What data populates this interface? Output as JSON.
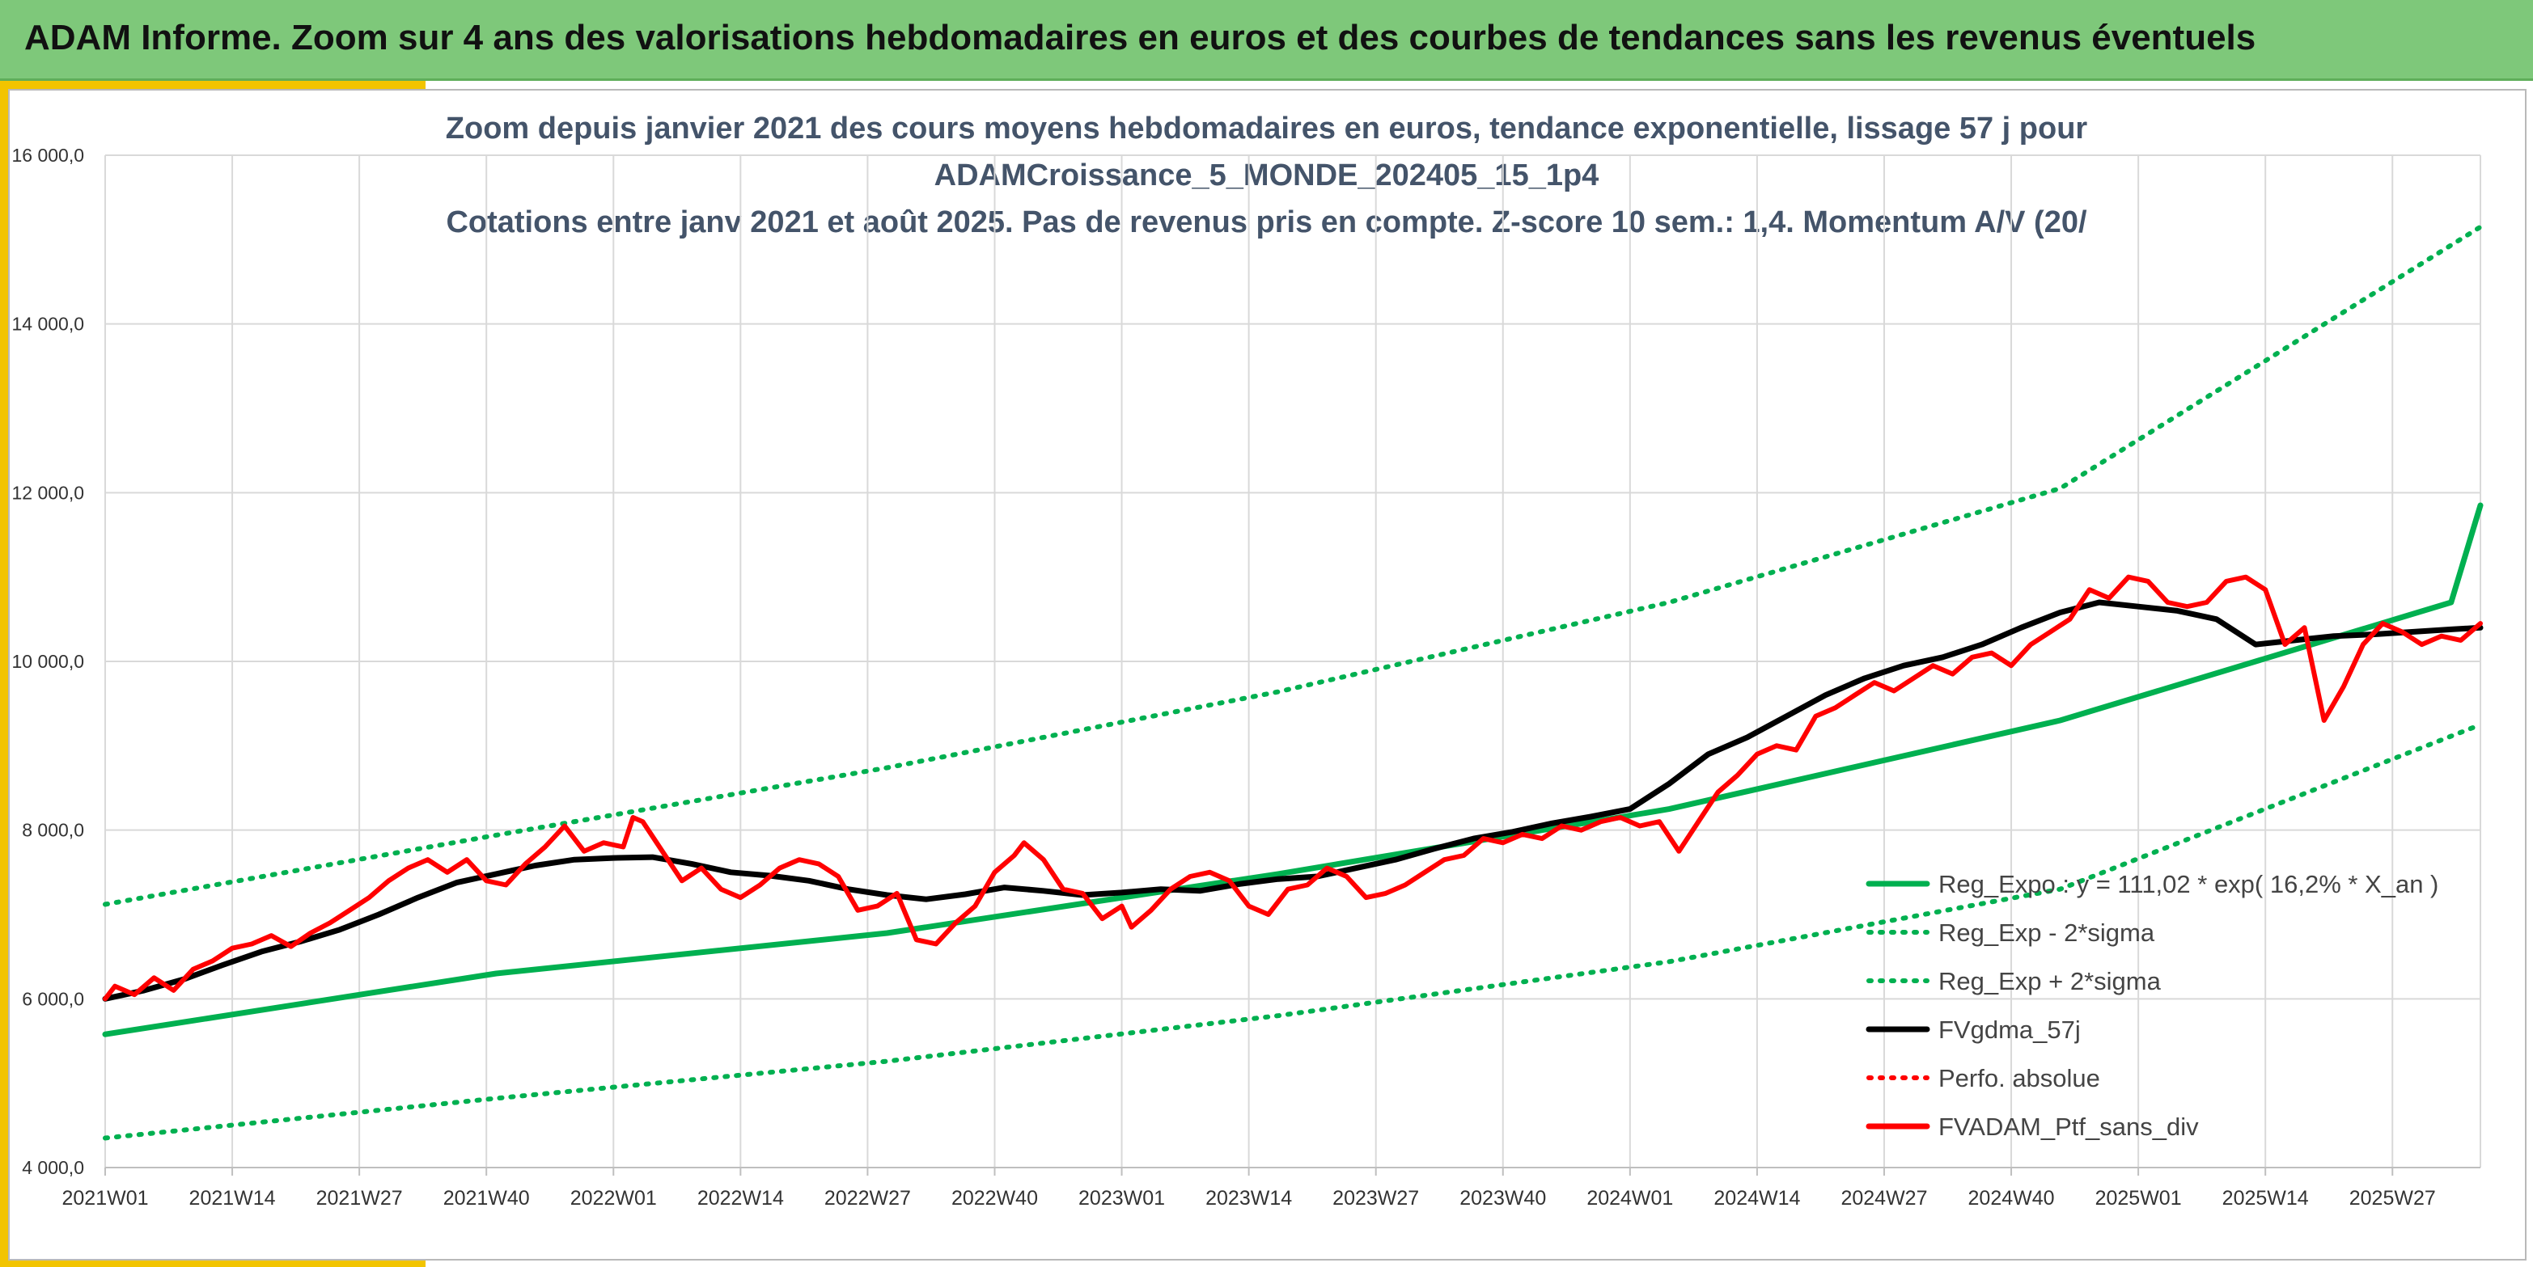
{
  "header": {
    "title": "ADAM Informe. Zoom sur 4 ans des valorisations hebdomadaires en euros et des courbes de tendances sans les revenus éventuels"
  },
  "colors": {
    "header_bg": "#7ec87a",
    "accent_yellow": "#f2c400",
    "green": "#00b050",
    "red": "#ff0000",
    "black": "#000000"
  },
  "chart_data": {
    "type": "line",
    "title": [
      "Zoom depuis janvier 2021 des cours moyens hebdomadaires en euros, tendance exponentielle, lissage 57 j pour",
      "ADAMCroissance_5_MONDE_202405_15_1p4",
      "Cotations entre janv 2021 et août 2025. Pas de revenus pris en compte. Z-score 10 sem.: 1,4. Momentum A/V (20/"
    ],
    "x_tick_labels": [
      "2021W01",
      "2021W14",
      "2021W27",
      "2021W40",
      "2022W01",
      "2022W14",
      "2022W27",
      "2022W40",
      "2023W01",
      "2023W14",
      "2023W27",
      "2023W40",
      "2024W01",
      "2024W14",
      "2024W27",
      "2024W40",
      "2025W01",
      "2025W14",
      "2025W27"
    ],
    "x_range_weeks": [
      0,
      243
    ],
    "y_tick_labels": [
      "4 000,0",
      "6 000,0",
      "8 000,0",
      "10 000,0",
      "12 000,0",
      "14 000,0",
      "16 000,0"
    ],
    "ylim": [
      4000,
      16000
    ],
    "grid": true,
    "legend_position": "bottom-right",
    "series": [
      {
        "name": "Reg_Expo : y = 111,02 * exp( 16,2% *  X_an )",
        "style": "solid",
        "color": "#00b050",
        "points": [
          [
            0,
            5580
          ],
          [
            40,
            6300
          ],
          [
            80,
            6780
          ],
          [
            120,
            7480
          ],
          [
            160,
            8250
          ],
          [
            200,
            9300
          ],
          [
            240,
            10700
          ],
          [
            243,
            11850
          ]
        ]
      },
      {
        "name": "Reg_Exp - 2*sigma",
        "style": "dotted",
        "color": "#00b050",
        "points": [
          [
            0,
            4350
          ],
          [
            40,
            4820
          ],
          [
            80,
            5260
          ],
          [
            120,
            5800
          ],
          [
            160,
            6440
          ],
          [
            200,
            7300
          ],
          [
            243,
            9250
          ]
        ]
      },
      {
        "name": "Reg_Exp + 2*sigma",
        "style": "dotted",
        "color": "#00b050",
        "points": [
          [
            0,
            7120
          ],
          [
            40,
            7940
          ],
          [
            80,
            8740
          ],
          [
            120,
            9640
          ],
          [
            160,
            10700
          ],
          [
            200,
            12050
          ],
          [
            243,
            15150
          ]
        ]
      },
      {
        "name": "FVgdma_57j",
        "style": "solid",
        "color": "#000000",
        "points": [
          [
            0,
            6000
          ],
          [
            4,
            6100
          ],
          [
            8,
            6230
          ],
          [
            12,
            6400
          ],
          [
            16,
            6560
          ],
          [
            20,
            6680
          ],
          [
            24,
            6820
          ],
          [
            28,
            7000
          ],
          [
            32,
            7200
          ],
          [
            36,
            7380
          ],
          [
            40,
            7480
          ],
          [
            44,
            7580
          ],
          [
            48,
            7650
          ],
          [
            52,
            7670
          ],
          [
            56,
            7680
          ],
          [
            60,
            7600
          ],
          [
            64,
            7500
          ],
          [
            68,
            7460
          ],
          [
            72,
            7400
          ],
          [
            76,
            7300
          ],
          [
            80,
            7230
          ],
          [
            84,
            7180
          ],
          [
            88,
            7240
          ],
          [
            92,
            7320
          ],
          [
            96,
            7280
          ],
          [
            100,
            7230
          ],
          [
            104,
            7260
          ],
          [
            108,
            7300
          ],
          [
            112,
            7280
          ],
          [
            116,
            7360
          ],
          [
            120,
            7420
          ],
          [
            124,
            7450
          ],
          [
            128,
            7550
          ],
          [
            132,
            7650
          ],
          [
            136,
            7780
          ],
          [
            140,
            7900
          ],
          [
            144,
            7980
          ],
          [
            148,
            8080
          ],
          [
            152,
            8160
          ],
          [
            156,
            8250
          ],
          [
            160,
            8550
          ],
          [
            164,
            8900
          ],
          [
            168,
            9100
          ],
          [
            172,
            9350
          ],
          [
            176,
            9600
          ],
          [
            180,
            9800
          ],
          [
            184,
            9950
          ],
          [
            188,
            10050
          ],
          [
            192,
            10200
          ],
          [
            196,
            10400
          ],
          [
            200,
            10580
          ],
          [
            204,
            10700
          ],
          [
            208,
            10650
          ],
          [
            212,
            10600
          ],
          [
            216,
            10500
          ],
          [
            220,
            10200
          ],
          [
            224,
            10250
          ],
          [
            228,
            10300
          ],
          [
            232,
            10320
          ],
          [
            236,
            10350
          ],
          [
            240,
            10380
          ],
          [
            243,
            10400
          ]
        ]
      },
      {
        "name": "Perfo. absolue",
        "style": "dotted",
        "color": "#ff0000",
        "points": []
      },
      {
        "name": "FVADAM_Ptf_sans_div",
        "style": "solid",
        "color": "#ff0000",
        "points": [
          [
            0,
            6000
          ],
          [
            1,
            6150
          ],
          [
            3,
            6050
          ],
          [
            5,
            6250
          ],
          [
            7,
            6100
          ],
          [
            9,
            6350
          ],
          [
            11,
            6450
          ],
          [
            13,
            6600
          ],
          [
            15,
            6650
          ],
          [
            17,
            6750
          ],
          [
            19,
            6620
          ],
          [
            21,
            6780
          ],
          [
            23,
            6900
          ],
          [
            25,
            7050
          ],
          [
            27,
            7200
          ],
          [
            29,
            7400
          ],
          [
            31,
            7550
          ],
          [
            33,
            7650
          ],
          [
            35,
            7500
          ],
          [
            37,
            7650
          ],
          [
            39,
            7400
          ],
          [
            41,
            7350
          ],
          [
            43,
            7600
          ],
          [
            45,
            7800
          ],
          [
            47,
            8050
          ],
          [
            49,
            7750
          ],
          [
            51,
            7850
          ],
          [
            53,
            7800
          ],
          [
            54,
            8150
          ],
          [
            55,
            8100
          ],
          [
            57,
            7750
          ],
          [
            59,
            7400
          ],
          [
            61,
            7550
          ],
          [
            63,
            7300
          ],
          [
            65,
            7200
          ],
          [
            67,
            7350
          ],
          [
            69,
            7550
          ],
          [
            71,
            7650
          ],
          [
            73,
            7600
          ],
          [
            75,
            7450
          ],
          [
            77,
            7050
          ],
          [
            79,
            7100
          ],
          [
            81,
            7250
          ],
          [
            83,
            6700
          ],
          [
            85,
            6650
          ],
          [
            87,
            6900
          ],
          [
            89,
            7100
          ],
          [
            91,
            7500
          ],
          [
            93,
            7700
          ],
          [
            94,
            7850
          ],
          [
            96,
            7650
          ],
          [
            98,
            7300
          ],
          [
            100,
            7250
          ],
          [
            102,
            6950
          ],
          [
            104,
            7100
          ],
          [
            105,
            6850
          ],
          [
            107,
            7050
          ],
          [
            109,
            7300
          ],
          [
            111,
            7450
          ],
          [
            113,
            7500
          ],
          [
            115,
            7400
          ],
          [
            117,
            7100
          ],
          [
            119,
            7000
          ],
          [
            121,
            7300
          ],
          [
            123,
            7350
          ],
          [
            125,
            7550
          ],
          [
            127,
            7450
          ],
          [
            129,
            7200
          ],
          [
            131,
            7250
          ],
          [
            133,
            7350
          ],
          [
            135,
            7500
          ],
          [
            137,
            7650
          ],
          [
            139,
            7700
          ],
          [
            141,
            7900
          ],
          [
            143,
            7850
          ],
          [
            145,
            7950
          ],
          [
            147,
            7900
          ],
          [
            149,
            8050
          ],
          [
            151,
            8000
          ],
          [
            153,
            8100
          ],
          [
            155,
            8150
          ],
          [
            157,
            8050
          ],
          [
            159,
            8100
          ],
          [
            161,
            7750
          ],
          [
            163,
            8100
          ],
          [
            165,
            8450
          ],
          [
            167,
            8650
          ],
          [
            169,
            8900
          ],
          [
            171,
            9000
          ],
          [
            173,
            8950
          ],
          [
            175,
            9350
          ],
          [
            177,
            9450
          ],
          [
            179,
            9600
          ],
          [
            181,
            9750
          ],
          [
            183,
            9650
          ],
          [
            185,
            9800
          ],
          [
            187,
            9950
          ],
          [
            189,
            9850
          ],
          [
            191,
            10050
          ],
          [
            193,
            10100
          ],
          [
            195,
            9950
          ],
          [
            197,
            10200
          ],
          [
            199,
            10350
          ],
          [
            201,
            10500
          ],
          [
            203,
            10850
          ],
          [
            205,
            10750
          ],
          [
            207,
            11000
          ],
          [
            209,
            10950
          ],
          [
            211,
            10700
          ],
          [
            213,
            10650
          ],
          [
            215,
            10700
          ],
          [
            217,
            10950
          ],
          [
            219,
            11000
          ],
          [
            221,
            10850
          ],
          [
            223,
            10200
          ],
          [
            225,
            10400
          ],
          [
            227,
            9300
          ],
          [
            229,
            9700
          ],
          [
            231,
            10200
          ],
          [
            233,
            10450
          ],
          [
            235,
            10350
          ],
          [
            237,
            10200
          ],
          [
            239,
            10300
          ],
          [
            241,
            10250
          ],
          [
            243,
            10450
          ]
        ]
      }
    ]
  }
}
